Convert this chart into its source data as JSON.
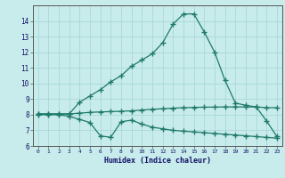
{
  "xlabel": "Humidex (Indice chaleur)",
  "x": [
    0,
    1,
    2,
    3,
    4,
    5,
    6,
    7,
    8,
    9,
    10,
    11,
    12,
    13,
    14,
    15,
    16,
    17,
    18,
    19,
    20,
    21,
    22,
    23
  ],
  "line1": [
    8.05,
    8.05,
    8.05,
    8.05,
    8.8,
    9.2,
    9.6,
    10.1,
    10.5,
    11.1,
    11.5,
    11.9,
    12.6,
    13.8,
    14.45,
    14.45,
    13.3,
    12.0,
    10.2,
    8.75,
    8.6,
    8.5,
    7.6,
    6.6
  ],
  "line2": [
    8.05,
    8.05,
    8.05,
    8.05,
    8.1,
    8.15,
    8.18,
    8.2,
    8.22,
    8.25,
    8.3,
    8.35,
    8.38,
    8.42,
    8.45,
    8.47,
    8.48,
    8.49,
    8.5,
    8.5,
    8.5,
    8.5,
    8.45,
    8.45
  ],
  "line3": [
    8.0,
    8.0,
    8.0,
    7.9,
    7.7,
    7.5,
    6.65,
    6.55,
    7.55,
    7.65,
    7.4,
    7.2,
    7.1,
    7.0,
    6.95,
    6.9,
    6.85,
    6.8,
    6.75,
    6.7,
    6.65,
    6.6,
    6.55,
    6.5
  ],
  "line_color": "#1e7a6a",
  "bg_color": "#c8ebeb",
  "grid_color": "#a8d8d8",
  "ylim": [
    6,
    15
  ],
  "yticks": [
    6,
    7,
    8,
    9,
    10,
    11,
    12,
    13,
    14
  ],
  "xlim": [
    -0.5,
    23.5
  ]
}
